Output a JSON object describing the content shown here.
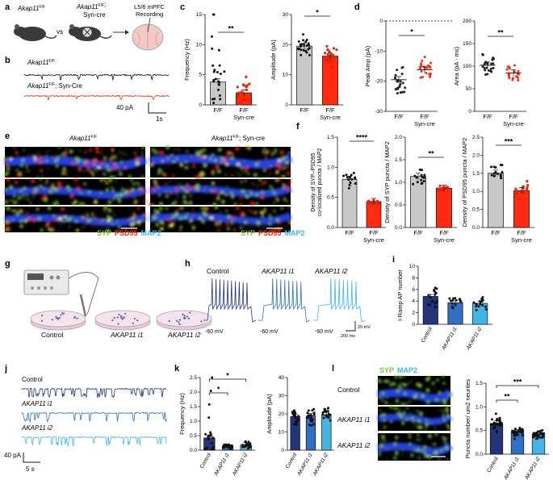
{
  "panels": {
    "a": {
      "letter": "a",
      "group1": "Akap11",
      "group1_sup": "F/F",
      "vs": "vs",
      "group2": "Akap11",
      "group2_sup": "F/F",
      "group2_line2": "Syn-cre",
      "record_line1": "L5/6 mPFC",
      "record_line2": "Recording"
    },
    "b": {
      "letter": "b",
      "trace1": "Akap11",
      "trace1_sup": "F/F",
      "trace2": "Akap11",
      "trace2_sup": "F/F",
      "trace2_suffix": "; Syn-Cre",
      "scale_y": "40 pA",
      "scale_x": "1s"
    },
    "c": {
      "letter": "c"
    },
    "d": {
      "letter": "d"
    },
    "e": {
      "letter": "e",
      "title1": "Akap11",
      "title1_sup": "F/F",
      "title2": "Akap11",
      "title2_sup": "F/F",
      "title2_suffix": "; Syn-cre",
      "legend": [
        "SYP",
        "PSD95",
        "MAP2"
      ]
    },
    "f": {
      "letter": "f"
    },
    "g": {
      "letter": "g",
      "labels": [
        "Control",
        "AKAP11 i1",
        "AKAP11 i2"
      ]
    },
    "h": {
      "letter": "h",
      "labels": [
        "Control",
        "AKAP11 i1",
        "AKAP11 i2"
      ],
      "baseline": "-60 mV",
      "scale_y": "20 mV",
      "scale_x": "200 ms"
    },
    "i": {
      "letter": "i"
    },
    "j": {
      "letter": "j",
      "labels": [
        "Control",
        "AKAP11 i1",
        "AKAP11 i2"
      ],
      "scale_y": "40 pA",
      "scale_x": "5 s"
    },
    "k": {
      "letter": "k"
    },
    "l": {
      "letter": "l",
      "labels": [
        "Control",
        "AKAP11 i1",
        "AKAP11 i2"
      ],
      "legend": [
        "SYP",
        "MAP2"
      ]
    }
  },
  "colors": {
    "grey": "#c8c8c8",
    "red": "#ff2a10",
    "dark_blue": "#23357a",
    "mid_blue": "#2f6fc4",
    "light_blue": "#42b6e8",
    "green": "#7fc241"
  },
  "chart_data": [
    {
      "id": "c1",
      "type": "bar",
      "categories": [
        "F/F",
        "F/F Syn-cre"
      ],
      "cat_line1": [
        "F/F",
        "F/F"
      ],
      "cat_line2": [
        "",
        "Syn-cre"
      ],
      "values": [
        3.8,
        2.0
      ],
      "ylabel": "Frequency (Hz)",
      "ylim": [
        0,
        15
      ],
      "yticks": [
        0,
        5,
        10,
        15
      ],
      "sig": "**"
    },
    {
      "id": "c2",
      "type": "bar",
      "categories": [
        "F/F",
        "F/F Syn-cre"
      ],
      "cat_line1": [
        "F/F",
        "F/F"
      ],
      "cat_line2": [
        "",
        "Syn-cre"
      ],
      "values": [
        19.5,
        16.2
      ],
      "ylabel": "Amplitude (pA)",
      "ylim": [
        0,
        30
      ],
      "yticks": [
        0,
        10,
        20,
        30
      ],
      "sig": "*"
    },
    {
      "id": "d1",
      "type": "scatter",
      "categories": [
        "F/F",
        "F/F Syn-cre"
      ],
      "cat_line1": [
        "F/F",
        "F/F"
      ],
      "cat_line2": [
        "",
        "Syn-cre"
      ],
      "values": [
        -19.5,
        -16.2
      ],
      "ylabel": "Peak Amp (pA)",
      "ylim": [
        -30,
        0
      ],
      "yticks": [
        -30,
        -20,
        -10,
        0
      ],
      "sig": "*"
    },
    {
      "id": "d2",
      "type": "scatter",
      "categories": [
        "F/F",
        "F/F Syn-cre"
      ],
      "cat_line1": [
        "F/F",
        "F/F"
      ],
      "cat_line2": [
        "",
        "Syn-cre"
      ],
      "values": [
        102,
        85
      ],
      "ylabel": "Area (pA · ms)",
      "ylim": [
        0,
        200
      ],
      "yticks": [
        0,
        50,
        100,
        150,
        200
      ],
      "sig": "**"
    },
    {
      "id": "f1",
      "type": "bar",
      "categories": [
        "F/F",
        "F/F Syn-cre"
      ],
      "cat_line1": [
        "F/F",
        "F/F"
      ],
      "cat_line2": [
        "",
        "Syn-cre"
      ],
      "values": [
        0.8,
        0.43
      ],
      "ylabel": "Density of SYP–PSD95 co-localized puncta / MAP2",
      "ylabel_lines": [
        "Density of SYP–PSD95",
        "co-localized puncta / MAP2"
      ],
      "ylim": [
        0,
        1.5
      ],
      "yticks": [
        0.0,
        0.5,
        1.0,
        1.5
      ],
      "sig": "****"
    },
    {
      "id": "f2",
      "type": "bar",
      "categories": [
        "F/F",
        "F/F Syn-cre"
      ],
      "cat_line1": [
        "F/F",
        "F/F"
      ],
      "cat_line2": [
        "",
        "Syn-cre"
      ],
      "values": [
        1.13,
        0.87
      ],
      "ylabel": "Density of SYP puncta / MAP2",
      "ylim": [
        0,
        2.0
      ],
      "yticks": [
        0.0,
        0.5,
        1.0,
        1.5,
        2.0
      ],
      "sig": "**"
    },
    {
      "id": "f3",
      "type": "bar",
      "categories": [
        "F/F",
        "F/F Syn-cre"
      ],
      "cat_line1": [
        "F/F",
        "F/F"
      ],
      "cat_line2": [
        "",
        "Syn-cre"
      ],
      "values": [
        1.5,
        1.02
      ],
      "ylabel": "Density of PSD95 puncta / MAP2",
      "ylim": [
        0,
        2.5
      ],
      "yticks": [
        0.0,
        0.5,
        1.0,
        1.5,
        2.0,
        2.5
      ],
      "sig": "***"
    },
    {
      "id": "i1",
      "type": "bar",
      "categories": [
        "Control",
        "AKAP11 i1",
        "AKAP11 i2"
      ],
      "values": [
        4.8,
        3.7,
        3.6
      ],
      "ylabel": "I-Ramp AP number",
      "ylim": [
        0,
        10
      ],
      "yticks": [
        0,
        2,
        4,
        6,
        8,
        10
      ]
    },
    {
      "id": "k1",
      "type": "bar",
      "categories": [
        "Control",
        "AKAP11 i1",
        "AKAP11 i2"
      ],
      "values": [
        0.42,
        0.13,
        0.18
      ],
      "ylabel": "Frequency (Hz)",
      "ylim": [
        0,
        2.5
      ],
      "yticks": [
        0.0,
        0.5,
        1.0,
        1.5,
        2.0,
        2.5
      ],
      "sig": [
        "*",
        "*"
      ]
    },
    {
      "id": "k2",
      "type": "bar",
      "categories": [
        "Control",
        "AKAP11 i1",
        "AKAP11 i2"
      ],
      "values": [
        18.5,
        18.8,
        19.5
      ],
      "ylabel": "Amplitude (pA)",
      "ylim": [
        0,
        40
      ],
      "yticks": [
        0,
        10,
        20,
        30,
        40
      ]
    },
    {
      "id": "l1",
      "type": "bar",
      "categories": [
        "Control",
        "AKAP11 i1",
        "AKAP11 i2"
      ],
      "values": [
        0.65,
        0.47,
        0.42
      ],
      "ylabel": "Puncta number/ um2 neurites",
      "ylim": [
        0,
        1.5
      ],
      "yticks": [
        0.0,
        0.5,
        1.0,
        1.5
      ],
      "sig": [
        "**",
        "***"
      ]
    }
  ]
}
